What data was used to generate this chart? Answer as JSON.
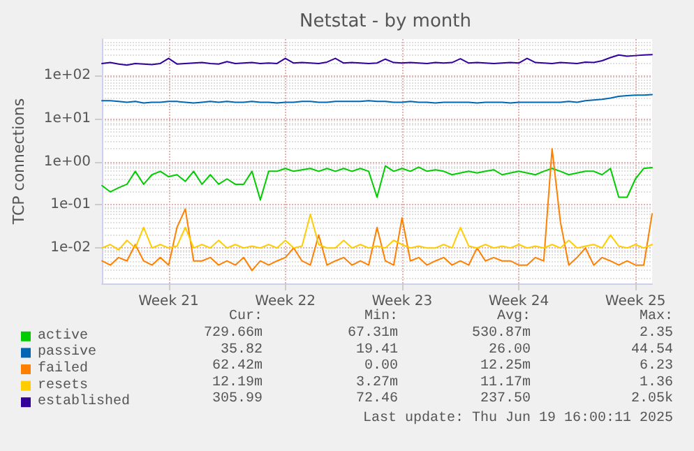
{
  "chart_data": {
    "type": "line",
    "title": "Netstat - by month",
    "ylabel": "TCP connections",
    "log": "y",
    "grid": true,
    "legend": "bottom left",
    "marker": "none",
    "line_style": "solid",
    "ylim": [
      0.0015,
      700
    ],
    "yticks": [
      {
        "value": 0.01,
        "label": "1e-02"
      },
      {
        "value": 0.1,
        "label": "1e-01"
      },
      {
        "value": 1,
        "label": "1e+00"
      },
      {
        "value": 10,
        "label": "1e+01"
      },
      {
        "value": 100,
        "label": "1e+02"
      }
    ],
    "xlim": [
      "2025-05-18T12:00",
      "2025-06-20T12:00"
    ],
    "xticks": [
      {
        "value": "2025-05-22T12:00",
        "label": "Week 21"
      },
      {
        "value": "2025-05-29T12:00",
        "label": "Week 22"
      },
      {
        "value": "2025-06-05T12:00",
        "label": "Week 23"
      },
      {
        "value": "2025-06-12T12:00",
        "label": "Week 24"
      },
      {
        "value": "2025-06-19T12:00",
        "label": "Week 25"
      }
    ],
    "x": [
      "2025-05-18T12:00",
      "2025-05-19T00:00",
      "2025-05-19T12:00",
      "2025-05-20T00:00",
      "2025-05-20T12:00",
      "2025-05-21T00:00",
      "2025-05-21T12:00",
      "2025-05-22T00:00",
      "2025-05-22T12:00",
      "2025-05-23T00:00",
      "2025-05-23T12:00",
      "2025-05-24T00:00",
      "2025-05-24T12:00",
      "2025-05-25T00:00",
      "2025-05-25T12:00",
      "2025-05-26T00:00",
      "2025-05-26T12:00",
      "2025-05-27T00:00",
      "2025-05-27T12:00",
      "2025-05-28T00:00",
      "2025-05-28T12:00",
      "2025-05-29T00:00",
      "2025-05-29T12:00",
      "2025-05-30T00:00",
      "2025-05-30T12:00",
      "2025-05-31T00:00",
      "2025-05-31T12:00",
      "2025-06-01T00:00",
      "2025-06-01T12:00",
      "2025-06-02T00:00",
      "2025-06-02T12:00",
      "2025-06-03T00:00",
      "2025-06-03T12:00",
      "2025-06-04T00:00",
      "2025-06-04T12:00",
      "2025-06-05T00:00",
      "2025-06-05T12:00",
      "2025-06-06T00:00",
      "2025-06-06T12:00",
      "2025-06-07T00:00",
      "2025-06-07T12:00",
      "2025-06-08T00:00",
      "2025-06-08T12:00",
      "2025-06-09T00:00",
      "2025-06-09T12:00",
      "2025-06-10T00:00",
      "2025-06-10T12:00",
      "2025-06-11T00:00",
      "2025-06-11T12:00",
      "2025-06-12T00:00",
      "2025-06-12T12:00",
      "2025-06-13T00:00",
      "2025-06-13T12:00",
      "2025-06-14T00:00",
      "2025-06-14T12:00",
      "2025-06-15T00:00",
      "2025-06-15T12:00",
      "2025-06-16T00:00",
      "2025-06-16T12:00",
      "2025-06-17T00:00",
      "2025-06-17T12:00",
      "2025-06-18T00:00",
      "2025-06-18T12:00",
      "2025-06-19T00:00",
      "2025-06-19T12:00",
      "2025-06-20T00:00",
      "2025-06-20T12:00"
    ],
    "series": [
      {
        "name": "active",
        "color": "#00cc00",
        "values": [
          0.28,
          0.2,
          0.25,
          0.3,
          0.6,
          0.3,
          0.5,
          0.6,
          0.45,
          0.5,
          0.35,
          0.6,
          0.3,
          0.5,
          0.3,
          0.4,
          0.3,
          0.3,
          0.6,
          0.13,
          0.6,
          0.6,
          0.7,
          0.6,
          0.65,
          0.7,
          0.6,
          0.7,
          0.6,
          0.7,
          0.6,
          0.7,
          0.6,
          0.15,
          0.8,
          0.6,
          0.7,
          0.6,
          0.75,
          0.6,
          0.65,
          0.6,
          0.5,
          0.55,
          0.6,
          0.55,
          0.6,
          0.65,
          0.5,
          0.55,
          0.6,
          0.55,
          0.5,
          0.6,
          0.7,
          0.6,
          0.5,
          0.55,
          0.6,
          0.6,
          0.5,
          0.7,
          0.15,
          0.15,
          0.4,
          0.7,
          0.73
        ]
      },
      {
        "name": "passive",
        "color": "#0066b3",
        "values": [
          26,
          26,
          25,
          24,
          25,
          23,
          24,
          24,
          25,
          25,
          24,
          23,
          24,
          25,
          24,
          25,
          24,
          24,
          25,
          24,
          24,
          23,
          24,
          24,
          25,
          25,
          24,
          24,
          25,
          25,
          25,
          25,
          26,
          25,
          25,
          24,
          24,
          25,
          24,
          24,
          23,
          24,
          24,
          24,
          24,
          23,
          24,
          24,
          24,
          23,
          24,
          24,
          24,
          24,
          24,
          24,
          25,
          24,
          26,
          27,
          28,
          30,
          33,
          34,
          35,
          35,
          36
        ]
      },
      {
        "name": "failed",
        "color": "#ff8000",
        "values": [
          0.005,
          0.004,
          0.006,
          0.005,
          0.012,
          0.005,
          0.004,
          0.006,
          0.004,
          0.03,
          0.08,
          0.005,
          0.005,
          0.006,
          0.004,
          0.005,
          0.004,
          0.006,
          0.003,
          0.005,
          0.004,
          0.005,
          0.006,
          0.01,
          0.005,
          0.004,
          0.02,
          0.004,
          0.005,
          0.006,
          0.004,
          0.005,
          0.004,
          0.03,
          0.005,
          0.004,
          0.05,
          0.005,
          0.006,
          0.004,
          0.005,
          0.006,
          0.004,
          0.005,
          0.004,
          0.01,
          0.005,
          0.006,
          0.005,
          0.005,
          0.004,
          0.004,
          0.006,
          0.005,
          2,
          0.04,
          0.004,
          0.006,
          0.01,
          0.004,
          0.006,
          0.005,
          0.004,
          0.005,
          0.004,
          0.004,
          0.062
        ]
      },
      {
        "name": "resets",
        "color": "#ffcc00",
        "values": [
          0.01,
          0.012,
          0.009,
          0.015,
          0.01,
          0.03,
          0.01,
          0.012,
          0.01,
          0.011,
          0.03,
          0.01,
          0.012,
          0.01,
          0.015,
          0.01,
          0.012,
          0.01,
          0.011,
          0.01,
          0.012,
          0.01,
          0.015,
          0.01,
          0.011,
          0.06,
          0.012,
          0.01,
          0.01,
          0.015,
          0.01,
          0.012,
          0.01,
          0.011,
          0.01,
          0.015,
          0.012,
          0.01,
          0.011,
          0.01,
          0.01,
          0.012,
          0.01,
          0.03,
          0.011,
          0.01,
          0.012,
          0.01,
          0.011,
          0.01,
          0.012,
          0.01,
          0.011,
          0.01,
          0.012,
          0.01,
          0.015,
          0.01,
          0.011,
          0.012,
          0.01,
          0.02,
          0.011,
          0.01,
          0.012,
          0.01,
          0.012
        ]
      },
      {
        "name": "established",
        "color": "#330099",
        "values": [
          190,
          200,
          185,
          175,
          190,
          185,
          180,
          190,
          250,
          185,
          190,
          195,
          200,
          190,
          185,
          210,
          190,
          195,
          200,
          190,
          195,
          190,
          250,
          195,
          200,
          195,
          190,
          205,
          250,
          195,
          200,
          195,
          190,
          195,
          240,
          200,
          195,
          200,
          195,
          190,
          200,
          195,
          200,
          245,
          195,
          200,
          195,
          190,
          195,
          200,
          195,
          250,
          200,
          195,
          190,
          200,
          195,
          190,
          205,
          200,
          220,
          260,
          300,
          280,
          290,
          300,
          306
        ]
      }
    ],
    "annotations": [
      "Cur:",
      "Min:",
      "Avg:",
      "Max:",
      "729.66m",
      "67.31m",
      "530.87m",
      "2.35",
      "35.82",
      "19.41",
      "26.00",
      "44.54",
      "62.42m",
      "0.00",
      "12.25m",
      "6.23",
      "12.19m",
      "3.27m",
      "11.17m",
      "1.36",
      "305.99",
      "72.46",
      "237.50",
      "2.05k",
      "Last update: Thu Jun 19 16:00:11 2025"
    ]
  }
}
